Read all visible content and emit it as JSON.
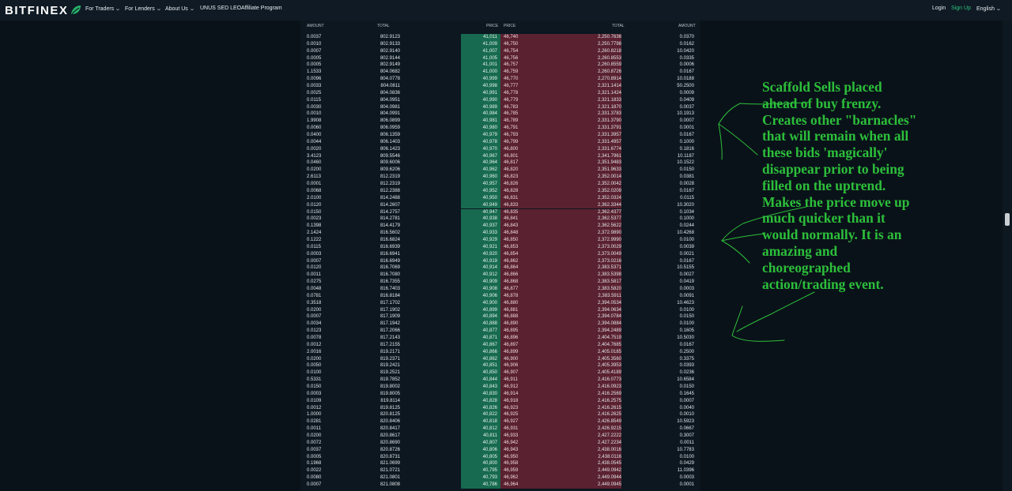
{
  "nav": {
    "brand": "BITFINEX",
    "menu": [
      {
        "label": "For Traders",
        "dropdown": true
      },
      {
        "label": "For Lenders",
        "dropdown": true
      },
      {
        "label": "About Us",
        "dropdown": true
      },
      {
        "label": "UNUS SED LEO",
        "dropdown": false
      },
      {
        "label": "Affiliate Program",
        "dropdown": false
      }
    ],
    "login": "Login",
    "signup": "Sign Up",
    "language": "English"
  },
  "colors": {
    "accent": "#2ec27e",
    "bid_bg": "#176a4f",
    "ask_bg": "#5a2130",
    "annotation": "#2cbf3a"
  },
  "book": {
    "headers": {
      "bid_amount": "AMOUNT",
      "bid_total": "TOTAL",
      "bid_price": "PRICE",
      "ask_price": "PRICE",
      "ask_total": "TOTAL",
      "ask_amount": "AMOUNT"
    },
    "rows": [
      {
        "b_amt": "0.0037",
        "b_tot": "802.9123",
        "b_price": "41,011",
        "a_price": "46,740",
        "a_tot": "2,250.7636",
        "a_amt": "0.0370"
      },
      {
        "b_amt": "0.0010",
        "b_tot": "802.9133",
        "b_price": "41,009",
        "a_price": "46,750",
        "a_tot": "2,250.7798",
        "a_amt": "0.0162"
      },
      {
        "b_amt": "0.0007",
        "b_tot": "802.9140",
        "b_price": "41,007",
        "a_price": "46,754",
        "a_tot": "2,260.8218",
        "a_amt": "10.0420"
      },
      {
        "b_amt": "0.0005",
        "b_tot": "802.9144",
        "b_price": "41,005",
        "a_price": "46,756",
        "a_tot": "2,260.8553",
        "a_amt": "0.0335"
      },
      {
        "b_amt": "0.0005",
        "b_tot": "802.9149",
        "b_price": "41,001",
        "a_price": "46,757",
        "a_tot": "2,260.8559",
        "a_amt": "0.0006"
      },
      {
        "b_amt": "1.1533",
        "b_tot": "804.0682",
        "b_price": "41,000",
        "a_price": "46,759",
        "a_tot": "2,260.8726",
        "a_amt": "0.0167"
      },
      {
        "b_amt": "0.0096",
        "b_tot": "804.0778",
        "b_price": "40,999",
        "a_price": "46,770",
        "a_tot": "2,270.8914",
        "a_amt": "10.0188"
      },
      {
        "b_amt": "0.0033",
        "b_tot": "804.0811",
        "b_price": "40,998",
        "a_price": "46,777",
        "a_tot": "2,321.1414",
        "a_amt": "50.2500"
      },
      {
        "b_amt": "0.0025",
        "b_tot": "804.0836",
        "b_price": "40,991",
        "a_price": "46,778",
        "a_tot": "2,321.1424",
        "a_amt": "0.0009"
      },
      {
        "b_amt": "0.0115",
        "b_tot": "804.0951",
        "b_price": "40,990",
        "a_price": "46,779",
        "a_tot": "2,321.1833",
        "a_amt": "0.0409"
      },
      {
        "b_amt": "0.0030",
        "b_tot": "804.0981",
        "b_price": "40,989",
        "a_price": "46,783",
        "a_tot": "2,321.1870",
        "a_amt": "0.0037"
      },
      {
        "b_amt": "0.0010",
        "b_tot": "804.0991",
        "b_price": "40,984",
        "a_price": "46,785",
        "a_tot": "2,331.3783",
        "a_amt": "10.1913"
      },
      {
        "b_amt": "1.9908",
        "b_tot": "806.0899",
        "b_price": "40,981",
        "a_price": "46,789",
        "a_tot": "2,331.3790",
        "a_amt": "0.0007"
      },
      {
        "b_amt": "0.0060",
        "b_tot": "806.0959",
        "b_price": "40,980",
        "a_price": "46,791",
        "a_tot": "2,331.3791",
        "a_amt": "0.0001"
      },
      {
        "b_amt": "0.0400",
        "b_tot": "806.1359",
        "b_price": "40,979",
        "a_price": "46,793",
        "a_tot": "2,331.3957",
        "a_amt": "0.0167"
      },
      {
        "b_amt": "0.0044",
        "b_tot": "806.1403",
        "b_price": "40,978",
        "a_price": "46,799",
        "a_tot": "2,331.4957",
        "a_amt": "0.1000"
      },
      {
        "b_amt": "0.0020",
        "b_tot": "806.1423",
        "b_price": "40,970",
        "a_price": "46,800",
        "a_tot": "2,331.6774",
        "a_amt": "0.1816"
      },
      {
        "b_amt": "3.4123",
        "b_tot": "809.5546",
        "b_price": "40,967",
        "a_price": "46,801",
        "a_tot": "2,341.7961",
        "a_amt": "10.1187"
      },
      {
        "b_amt": "0.0460",
        "b_tot": "809.6006",
        "b_price": "40,964",
        "a_price": "46,817",
        "a_tot": "2,351.9483",
        "a_amt": "10.1522"
      },
      {
        "b_amt": "0.0200",
        "b_tot": "809.6206",
        "b_price": "40,962",
        "a_price": "46,820",
        "a_tot": "2,351.9633",
        "a_amt": "0.0150"
      },
      {
        "b_amt": "2.6113",
        "b_tot": "812.2319",
        "b_price": "40,960",
        "a_price": "46,823",
        "a_tot": "2,352.0014",
        "a_amt": "0.0381"
      },
      {
        "b_amt": "0.0001",
        "b_tot": "812.2319",
        "b_price": "40,957",
        "a_price": "46,826",
        "a_tot": "2,352.0042",
        "a_amt": "0.0028"
      },
      {
        "b_amt": "0.0068",
        "b_tot": "812.2388",
        "b_price": "40,952",
        "a_price": "46,828",
        "a_tot": "2,352.0209",
        "a_amt": "0.0167"
      },
      {
        "b_amt": "2.0100",
        "b_tot": "814.2488",
        "b_price": "40,950",
        "a_price": "46,831",
        "a_tot": "2,352.0324",
        "a_amt": "0.0115"
      },
      {
        "b_amt": "0.0120",
        "b_tot": "814.2607",
        "b_price": "40,949",
        "a_price": "46,833",
        "a_tot": "2,362.3344",
        "a_amt": "10.3020"
      },
      {
        "b_amt": "0.0150",
        "b_tot": "814.2757",
        "b_price": "40,947",
        "a_price": "46,835",
        "a_tot": "2,362.4377",
        "a_amt": "0.1034"
      },
      {
        "b_amt": "0.0023",
        "b_tot": "814.2781",
        "b_price": "40,938",
        "a_price": "46,841",
        "a_tot": "2,362.5377",
        "a_amt": "0.1000"
      },
      {
        "b_amt": "0.1398",
        "b_tot": "814.4179",
        "b_price": "40,937",
        "a_price": "46,843",
        "a_tot": "2,362.5622",
        "a_amt": "0.0244"
      },
      {
        "b_amt": "2.1424",
        "b_tot": "816.5602",
        "b_price": "40,933",
        "a_price": "46,848",
        "a_tot": "2,372.9890",
        "a_amt": "10.4268"
      },
      {
        "b_amt": "0.1222",
        "b_tot": "816.6824",
        "b_price": "40,929",
        "a_price": "46,850",
        "a_tot": "2,372.9990",
        "a_amt": "0.0100"
      },
      {
        "b_amt": "0.0115",
        "b_tot": "816.6939",
        "b_price": "40,921",
        "a_price": "46,853",
        "a_tot": "2,373.0029",
        "a_amt": "0.0039"
      },
      {
        "b_amt": "0.0003",
        "b_tot": "816.6941",
        "b_price": "40,920",
        "a_price": "46,854",
        "a_tot": "2,373.0049",
        "a_amt": "0.0021"
      },
      {
        "b_amt": "0.0007",
        "b_tot": "816.6949",
        "b_price": "40,919",
        "a_price": "46,862",
        "a_tot": "2,373.0216",
        "a_amt": "0.0167"
      },
      {
        "b_amt": "0.0120",
        "b_tot": "816.7069",
        "b_price": "40,914",
        "a_price": "46,864",
        "a_tot": "2,383.5371",
        "a_amt": "10.5155"
      },
      {
        "b_amt": "0.0011",
        "b_tot": "816.7080",
        "b_price": "40,912",
        "a_price": "46,866",
        "a_tot": "2,383.5398",
        "a_amt": "0.0027"
      },
      {
        "b_amt": "0.0275",
        "b_tot": "816.7355",
        "b_price": "40,909",
        "a_price": "46,868",
        "a_tot": "2,383.5817",
        "a_amt": "0.0419"
      },
      {
        "b_amt": "0.0048",
        "b_tot": "816.7403",
        "b_price": "40,908",
        "a_price": "46,877",
        "a_tot": "2,383.5820",
        "a_amt": "0.0003"
      },
      {
        "b_amt": "0.0781",
        "b_tot": "816.8184",
        "b_price": "40,906",
        "a_price": "46,878",
        "a_tot": "2,383.5911",
        "a_amt": "0.0091"
      },
      {
        "b_amt": "0.3518",
        "b_tot": "817.1702",
        "b_price": "40,900",
        "a_price": "46,880",
        "a_tot": "2,394.0534",
        "a_amt": "10.4623"
      },
      {
        "b_amt": "0.0200",
        "b_tot": "817.1902",
        "b_price": "40,899",
        "a_price": "46,881",
        "a_tot": "2,394.0634",
        "a_amt": "0.0100"
      },
      {
        "b_amt": "0.0007",
        "b_tot": "817.1909",
        "b_price": "40,894",
        "a_price": "46,888",
        "a_tot": "2,394.0784",
        "a_amt": "0.0150"
      },
      {
        "b_amt": "0.0034",
        "b_tot": "817.1942",
        "b_price": "40,888",
        "a_price": "46,890",
        "a_tot": "2,394.0884",
        "a_amt": "0.0100"
      },
      {
        "b_amt": "0.0123",
        "b_tot": "817.2066",
        "b_price": "40,877",
        "a_price": "46,895",
        "a_tot": "2,394.2489",
        "a_amt": "0.1605"
      },
      {
        "b_amt": "0.0078",
        "b_tot": "817.2143",
        "b_price": "40,871",
        "a_price": "46,896",
        "a_tot": "2,404.7519",
        "a_amt": "10.5030"
      },
      {
        "b_amt": "0.0012",
        "b_tot": "817.2155",
        "b_price": "40,867",
        "a_price": "46,897",
        "a_tot": "2,404.7685",
        "a_amt": "0.0167"
      },
      {
        "b_amt": "2.0016",
        "b_tot": "819.2171",
        "b_price": "40,866",
        "a_price": "46,899",
        "a_tot": "2,405.0185",
        "a_amt": "0.2500"
      },
      {
        "b_amt": "0.0200",
        "b_tot": "819.2371",
        "b_price": "40,862",
        "a_price": "46,900",
        "a_tot": "2,405.3560",
        "a_amt": "0.3375"
      },
      {
        "b_amt": "0.0050",
        "b_tot": "819.2421",
        "b_price": "40,851",
        "a_price": "46,906",
        "a_tot": "2,405.3953",
        "a_amt": "0.0393"
      },
      {
        "b_amt": "0.0100",
        "b_tot": "819.2521",
        "b_price": "40,850",
        "a_price": "46,907",
        "a_tot": "2,405.4189",
        "a_amt": "0.0236"
      },
      {
        "b_amt": "0.5331",
        "b_tot": "819.7852",
        "b_price": "40,844",
        "a_price": "46,911",
        "a_tot": "2,416.0773",
        "a_amt": "10.6584"
      },
      {
        "b_amt": "0.0150",
        "b_tot": "819.8002",
        "b_price": "40,843",
        "a_price": "46,912",
        "a_tot": "2,416.0923",
        "a_amt": "0.0150"
      },
      {
        "b_amt": "0.0003",
        "b_tot": "819.8005",
        "b_price": "40,830",
        "a_price": "46,914",
        "a_tot": "2,416.2569",
        "a_amt": "0.1645"
      },
      {
        "b_amt": "0.0109",
        "b_tot": "819.8114",
        "b_price": "40,828",
        "a_price": "46,918",
        "a_tot": "2,416.2575",
        "a_amt": "0.0007"
      },
      {
        "b_amt": "0.0012",
        "b_tot": "819.8125",
        "b_price": "40,826",
        "a_price": "46,923",
        "a_tot": "2,416.2615",
        "a_amt": "0.0040"
      },
      {
        "b_amt": "1.0000",
        "b_tot": "820.8125",
        "b_price": "40,822",
        "a_price": "46,925",
        "a_tot": "2,416.2625",
        "a_amt": "0.0010"
      },
      {
        "b_amt": "0.0281",
        "b_tot": "820.8406",
        "b_price": "40,818",
        "a_price": "46,927",
        "a_tot": "2,426.8549",
        "a_amt": "10.5923"
      },
      {
        "b_amt": "0.0011",
        "b_tot": "820.8417",
        "b_price": "40,812",
        "a_price": "46,931",
        "a_tot": "2,426.9215",
        "a_amt": "0.0667"
      },
      {
        "b_amt": "0.0200",
        "b_tot": "820.8617",
        "b_price": "40,811",
        "a_price": "46,933",
        "a_tot": "2,427.2222",
        "a_amt": "0.3007"
      },
      {
        "b_amt": "0.0072",
        "b_tot": "820.8690",
        "b_price": "40,807",
        "a_price": "46,942",
        "a_tot": "2,427.2234",
        "a_amt": "0.0011"
      },
      {
        "b_amt": "0.0037",
        "b_tot": "820.8726",
        "b_price": "40,806",
        "a_price": "46,943",
        "a_tot": "2,438.0016",
        "a_amt": "10.7783"
      },
      {
        "b_amt": "0.0005",
        "b_tot": "820.8731",
        "b_price": "40,805",
        "a_price": "46,950",
        "a_tot": "2,438.0116",
        "a_amt": "0.0100"
      },
      {
        "b_amt": "0.1968",
        "b_tot": "821.0699",
        "b_price": "40,800",
        "a_price": "46,958",
        "a_tot": "2,438.0545",
        "a_amt": "0.0429"
      },
      {
        "b_amt": "0.0022",
        "b_tot": "821.0721",
        "b_price": "40,795",
        "a_price": "46,959",
        "a_tot": "2,449.0942",
        "a_amt": "11.0396"
      },
      {
        "b_amt": "0.0080",
        "b_tot": "821.0801",
        "b_price": "40,793",
        "a_price": "46,962",
        "a_tot": "2,449.0944",
        "a_amt": "0.0003"
      },
      {
        "b_amt": "0.0007",
        "b_tot": "821.0808",
        "b_price": "40,786",
        "a_price": "46,964",
        "a_tot": "2,449.0945",
        "a_amt": "0.0001"
      }
    ]
  },
  "annotation": {
    "lines": [
      "Scaffold Sells placed",
      "ahead of buy frenzy.",
      "Creates other \"barnacles\"",
      "that will remain when all",
      "these bids 'magically'",
      "disappear prior to being",
      "filled on the uptrend.",
      "Makes the price move up",
      "much quicker than it",
      "would normally. It is an",
      "amazing and",
      "choreographed",
      "action/trading event."
    ]
  }
}
